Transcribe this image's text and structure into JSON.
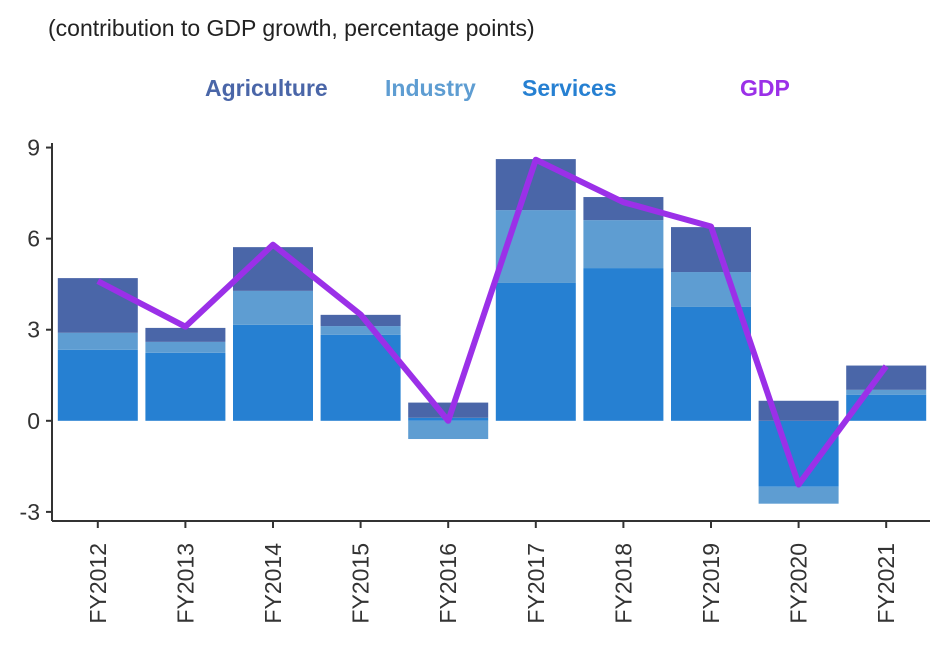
{
  "chart_data": {
    "type": "stacked-bar-line",
    "title": "(contribution to GDP growth, percentage points)",
    "categories": [
      "FY2012",
      "FY2013",
      "FY2014",
      "FY2015",
      "FY2016",
      "FY2017",
      "FY2018",
      "FY2019",
      "FY2020",
      "FY2021"
    ],
    "series": [
      {
        "name": "Agriculture",
        "color": "#4a66a8",
        "kind": "bar",
        "values": [
          1.8,
          0.46,
          1.44,
          0.37,
          0.5,
          1.68,
          0.76,
          1.48,
          0.66,
          0.8
        ]
      },
      {
        "name": "Industry",
        "color": "#5e9dd2",
        "kind": "bar",
        "values": [
          0.56,
          0.36,
          1.12,
          0.29,
          -0.6,
          2.4,
          1.58,
          1.15,
          -0.56,
          0.16
        ]
      },
      {
        "name": "Services",
        "color": "#2680d2",
        "kind": "bar",
        "values": [
          2.34,
          2.24,
          3.16,
          2.83,
          0.1,
          4.54,
          5.03,
          3.75,
          -2.17,
          0.86
        ]
      },
      {
        "name": "GDP",
        "color": "#9b30e8",
        "kind": "line",
        "values": [
          4.6,
          3.1,
          5.8,
          3.5,
          0.0,
          8.6,
          7.2,
          6.4,
          -2.1,
          1.8
        ]
      }
    ],
    "ylim": [
      -3.3,
      9.15
    ],
    "yticks": [
      -3,
      0,
      3,
      6,
      9
    ]
  }
}
